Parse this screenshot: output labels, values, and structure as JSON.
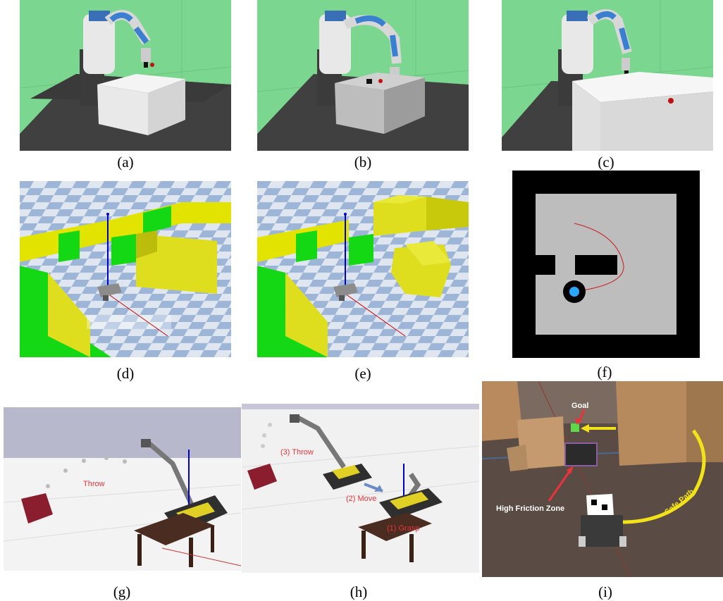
{
  "figure": {
    "captions": [
      "(a)",
      "(b)",
      "(c)",
      "(d)",
      "(e)",
      "(f)",
      "(g)",
      "(h)",
      "(i)"
    ],
    "annotations": {
      "g_throw": "Throw",
      "h_throw": "(3) Throw",
      "h_move": "(2) Move",
      "h_grasp": "(1) Grasp",
      "i_goal": "Goal",
      "i_friction": "High Friction Zone",
      "i_safe_path": "Safe Path"
    },
    "colors": {
      "sim_green_bg": "#7bd68f",
      "annotation_red": "#e8343a",
      "path_yellow": "#f2e21a",
      "maze_black": "#000000",
      "maze_gray": "#bdbdbd"
    }
  }
}
